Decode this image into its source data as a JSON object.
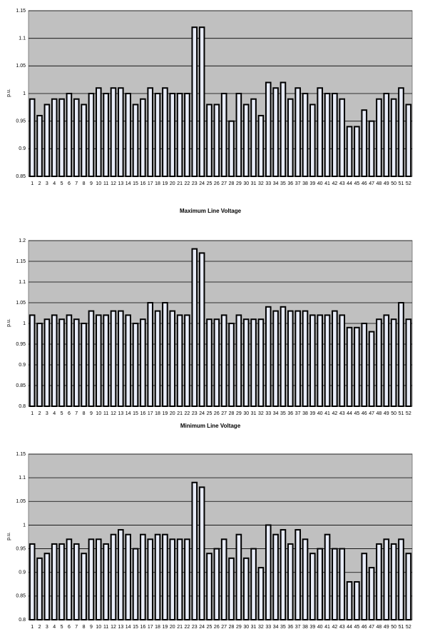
{
  "chart_data": [
    {
      "type": "bar",
      "y_label": "p.u.",
      "x_label": "Maximum  Line Voltage",
      "color": "#000000",
      "fill": "#e8ecf8",
      "background": "#c0c0c0",
      "grid": true,
      "categories": [
        1,
        2,
        3,
        4,
        5,
        6,
        7,
        8,
        9,
        10,
        11,
        12,
        13,
        14,
        15,
        16,
        17,
        18,
        19,
        20,
        21,
        22,
        23,
        24,
        25,
        26,
        27,
        28,
        29,
        30,
        31,
        32,
        33,
        34,
        35,
        36,
        37,
        38,
        39,
        40,
        41,
        42,
        43,
        44,
        45,
        46,
        47,
        48,
        49,
        50,
        51,
        52
      ],
      "values": [
        0.99,
        0.96,
        0.98,
        0.99,
        0.99,
        1.0,
        0.99,
        0.98,
        1.0,
        1.01,
        1.0,
        1.01,
        1.01,
        1.0,
        0.98,
        0.99,
        1.01,
        1.0,
        1.01,
        1.0,
        1.0,
        1.0,
        1.12,
        1.12,
        0.98,
        0.98,
        1.0,
        0.95,
        1.0,
        0.98,
        0.99,
        0.96,
        1.02,
        1.01,
        1.02,
        0.99,
        1.01,
        1.0,
        0.98,
        1.01,
        1.0,
        1.0,
        0.99,
        0.94,
        0.94,
        0.97,
        0.95,
        0.99,
        1.0,
        0.99,
        1.01,
        0.98
      ],
      "ylim": [
        0.85,
        1.15
      ],
      "yticks": [
        0.85,
        0.9,
        0.95,
        1,
        1.05,
        1.1,
        1.15
      ]
    },
    {
      "type": "bar",
      "y_label": "p.u.",
      "x_label": "Minimum  Line Voltage",
      "color": "#000000",
      "fill": "#e8ecf8",
      "background": "#c0c0c0",
      "grid": true,
      "categories": [
        1,
        2,
        3,
        4,
        5,
        6,
        7,
        8,
        9,
        10,
        11,
        12,
        13,
        14,
        15,
        16,
        17,
        18,
        19,
        20,
        21,
        22,
        23,
        24,
        25,
        26,
        27,
        28,
        29,
        30,
        31,
        32,
        33,
        34,
        35,
        36,
        37,
        38,
        39,
        40,
        41,
        42,
        43,
        44,
        45,
        46,
        47,
        48,
        49,
        50,
        51,
        52
      ],
      "values": [
        1.02,
        1.0,
        1.01,
        1.02,
        1.01,
        1.02,
        1.01,
        1.0,
        1.03,
        1.02,
        1.02,
        1.03,
        1.03,
        1.02,
        1.0,
        1.01,
        1.05,
        1.03,
        1.05,
        1.03,
        1.02,
        1.02,
        1.18,
        1.17,
        1.01,
        1.01,
        1.02,
        1.0,
        1.02,
        1.01,
        1.01,
        1.01,
        1.04,
        1.03,
        1.04,
        1.03,
        1.03,
        1.03,
        1.02,
        1.02,
        1.02,
        1.03,
        1.02,
        0.99,
        0.99,
        1.0,
        0.98,
        1.01,
        1.02,
        1.01,
        1.05,
        1.01
      ],
      "ylim": [
        0.8,
        1.2
      ],
      "yticks": [
        0.8,
        0.85,
        0.9,
        0.95,
        1,
        1.05,
        1.1,
        1.15,
        1.2
      ]
    },
    {
      "type": "bar",
      "y_label": "p.u.",
      "color": "#000000",
      "fill": "#e8ecf8",
      "background": "#c0c0c0",
      "grid": true,
      "categories": [
        1,
        2,
        3,
        4,
        5,
        6,
        7,
        8,
        9,
        10,
        11,
        12,
        13,
        14,
        15,
        16,
        17,
        18,
        19,
        20,
        21,
        22,
        23,
        24,
        25,
        26,
        27,
        28,
        29,
        30,
        31,
        32,
        33,
        34,
        35,
        36,
        37,
        38,
        39,
        40,
        41,
        42,
        43,
        44,
        45,
        46,
        47,
        48,
        49,
        50,
        51,
        52
      ],
      "values": [
        0.96,
        0.93,
        0.94,
        0.96,
        0.96,
        0.97,
        0.96,
        0.94,
        0.97,
        0.97,
        0.96,
        0.98,
        0.99,
        0.98,
        0.95,
        0.98,
        0.97,
        0.98,
        0.98,
        0.97,
        0.97,
        0.97,
        1.09,
        1.08,
        0.94,
        0.95,
        0.97,
        0.93,
        0.98,
        0.93,
        0.95,
        0.91,
        1.0,
        0.98,
        0.99,
        0.96,
        0.99,
        0.97,
        0.94,
        0.95,
        0.98,
        0.95,
        0.95,
        0.88,
        0.88,
        0.94,
        0.91,
        0.96,
        0.97,
        0.96,
        0.97,
        0.94
      ],
      "ylim": [
        0.8,
        1.15
      ],
      "yticks": [
        0.8,
        0.85,
        0.9,
        0.95,
        1,
        1.05,
        1.1,
        1.15
      ]
    }
  ]
}
